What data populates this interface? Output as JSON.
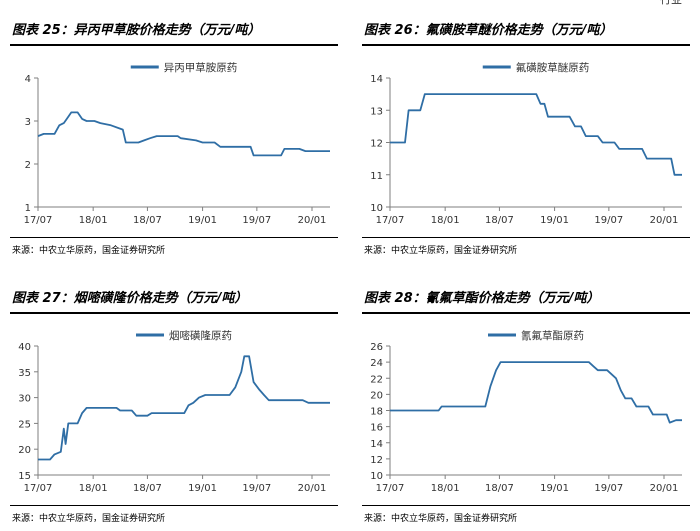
{
  "header": {
    "top_right_fragment": "行业"
  },
  "colors": {
    "series": "#2f6ea5",
    "axis": "#7f7f7f"
  },
  "chart_data": [
    {
      "type": "line",
      "title": "图表 25：异丙甲草胺价格走势（万元/吨）",
      "source": "来源：中农立华原药，国金证券研究所",
      "legend": {
        "position": "top-center"
      },
      "xlabel": "",
      "ylabel": "",
      "ylim": [
        1,
        4
      ],
      "yticks": [
        1,
        2,
        3,
        4
      ],
      "xlim": [
        "2017-07-01",
        "2020-03-01"
      ],
      "xticks": [
        "17/07",
        "18/01",
        "18/07",
        "19/01",
        "19/07",
        "20/01"
      ],
      "series": [
        {
          "name": "异丙甲草胺原药",
          "points": [
            [
              "2017-07-01",
              2.65
            ],
            [
              "2017-07-20",
              2.7
            ],
            [
              "2017-08-25",
              2.7
            ],
            [
              "2017-09-10",
              2.9
            ],
            [
              "2017-09-25",
              2.95
            ],
            [
              "2017-10-05",
              3.05
            ],
            [
              "2017-10-20",
              3.2
            ],
            [
              "2017-11-10",
              3.2
            ],
            [
              "2017-11-25",
              3.05
            ],
            [
              "2017-12-10",
              3.0
            ],
            [
              "2018-01-05",
              3.0
            ],
            [
              "2018-01-25",
              2.95
            ],
            [
              "2018-03-01",
              2.9
            ],
            [
              "2018-04-10",
              2.8
            ],
            [
              "2018-04-20",
              2.5
            ],
            [
              "2018-06-01",
              2.5
            ],
            [
              "2018-06-20",
              2.55
            ],
            [
              "2018-07-10",
              2.6
            ],
            [
              "2018-08-01",
              2.65
            ],
            [
              "2018-10-10",
              2.65
            ],
            [
              "2018-10-20",
              2.6
            ],
            [
              "2018-12-10",
              2.55
            ],
            [
              "2019-01-01",
              2.5
            ],
            [
              "2019-02-10",
              2.5
            ],
            [
              "2019-03-01",
              2.4
            ],
            [
              "2019-06-10",
              2.4
            ],
            [
              "2019-06-20",
              2.2
            ],
            [
              "2019-09-20",
              2.2
            ],
            [
              "2019-10-01",
              2.35
            ],
            [
              "2019-11-20",
              2.35
            ],
            [
              "2019-12-10",
              2.3
            ],
            [
              "2020-03-01",
              2.3
            ]
          ]
        }
      ]
    },
    {
      "type": "line",
      "title": "图表 26：氟磺胺草醚价格走势（万元/吨）",
      "source": "来源：中农立华原药，国金证券研究所",
      "legend": {
        "position": "top-center"
      },
      "xlabel": "",
      "ylabel": "",
      "ylim": [
        10,
        14
      ],
      "yticks": [
        10,
        11,
        12,
        13,
        14
      ],
      "xlim": [
        "2017-07-01",
        "2020-03-01"
      ],
      "xticks": [
        "17/07",
        "18/01",
        "18/07",
        "19/01",
        "19/07",
        "20/01"
      ],
      "series": [
        {
          "name": "氟磺胺草醚原药",
          "points": [
            [
              "2017-07-01",
              12.0
            ],
            [
              "2017-08-20",
              12.0
            ],
            [
              "2017-09-01",
              13.0
            ],
            [
              "2017-10-10",
              13.0
            ],
            [
              "2017-10-25",
              13.5
            ],
            [
              "2018-11-01",
              13.5
            ],
            [
              "2018-11-15",
              13.2
            ],
            [
              "2018-11-28",
              13.2
            ],
            [
              "2018-12-10",
              12.8
            ],
            [
              "2019-02-20",
              12.8
            ],
            [
              "2019-03-10",
              12.5
            ],
            [
              "2019-03-30",
              12.5
            ],
            [
              "2019-04-15",
              12.2
            ],
            [
              "2019-05-25",
              12.2
            ],
            [
              "2019-06-10",
              12.0
            ],
            [
              "2019-07-20",
              12.0
            ],
            [
              "2019-08-05",
              11.8
            ],
            [
              "2019-10-20",
              11.8
            ],
            [
              "2019-11-05",
              11.5
            ],
            [
              "2020-01-25",
              11.5
            ],
            [
              "2020-02-05",
              11.0
            ],
            [
              "2020-03-01",
              11.0
            ]
          ]
        }
      ]
    },
    {
      "type": "line",
      "title": "图表 27：烟嘧磺隆价格走势（万元/吨）",
      "source": "来源：中农立华原药，国金证券研究所",
      "legend": {
        "position": "top-center"
      },
      "xlabel": "",
      "ylabel": "",
      "ylim": [
        15,
        40
      ],
      "yticks": [
        15,
        20,
        25,
        30,
        35,
        40
      ],
      "xlim": [
        "2017-07-01",
        "2020-03-01"
      ],
      "xticks": [
        "17/07",
        "18/01",
        "18/07",
        "19/01",
        "19/07",
        "20/01"
      ],
      "series": [
        {
          "name": "烟嘧磺隆原药",
          "points": [
            [
              "2017-07-01",
              18.0
            ],
            [
              "2017-08-10",
              18.0
            ],
            [
              "2017-08-25",
              19.0
            ],
            [
              "2017-09-15",
              19.5
            ],
            [
              "2017-09-25",
              24.0
            ],
            [
              "2017-10-01",
              21.0
            ],
            [
              "2017-10-10",
              25.0
            ],
            [
              "2017-11-10",
              25.0
            ],
            [
              "2017-11-25",
              27.0
            ],
            [
              "2017-12-10",
              28.0
            ],
            [
              "2018-03-20",
              28.0
            ],
            [
              "2018-04-01",
              27.5
            ],
            [
              "2018-05-10",
              27.5
            ],
            [
              "2018-05-25",
              26.5
            ],
            [
              "2018-07-01",
              26.5
            ],
            [
              "2018-07-15",
              27.0
            ],
            [
              "2018-11-01",
              27.0
            ],
            [
              "2018-11-15",
              28.5
            ],
            [
              "2018-12-01",
              29.0
            ],
            [
              "2018-12-20",
              30.0
            ],
            [
              "2019-01-10",
              30.5
            ],
            [
              "2019-04-01",
              30.5
            ],
            [
              "2019-04-20",
              32.0
            ],
            [
              "2019-05-10",
              35.0
            ],
            [
              "2019-05-20",
              38.0
            ],
            [
              "2019-06-05",
              38.0
            ],
            [
              "2019-06-20",
              33.0
            ],
            [
              "2019-07-10",
              31.5
            ],
            [
              "2019-07-25",
              30.5
            ],
            [
              "2019-08-10",
              29.5
            ],
            [
              "2019-12-01",
              29.5
            ],
            [
              "2019-12-20",
              29.0
            ],
            [
              "2020-03-01",
              29.0
            ]
          ]
        }
      ]
    },
    {
      "type": "line",
      "title": "图表 28：氰氟草酯价格走势（万元/吨）",
      "source": "来源：中农立华原药，国金证券研究所",
      "legend": {
        "position": "top-center"
      },
      "xlabel": "",
      "ylabel": "",
      "ylim": [
        10,
        26
      ],
      "yticks": [
        10,
        12,
        14,
        16,
        18,
        20,
        22,
        24,
        26
      ],
      "xlim": [
        "2017-07-01",
        "2020-03-01"
      ],
      "xticks": [
        "17/07",
        "18/01",
        "18/07",
        "19/01",
        "19/07",
        "20/01"
      ],
      "series": [
        {
          "name": "氰氟草酯原药",
          "points": [
            [
              "2017-07-01",
              18.0
            ],
            [
              "2017-12-10",
              18.0
            ],
            [
              "2017-12-20",
              18.5
            ],
            [
              "2018-05-15",
              18.5
            ],
            [
              "2018-06-01",
              21.0
            ],
            [
              "2018-06-20",
              23.0
            ],
            [
              "2018-07-05",
              24.0
            ],
            [
              "2019-04-25",
              24.0
            ],
            [
              "2019-05-10",
              23.5
            ],
            [
              "2019-05-25",
              23.0
            ],
            [
              "2019-06-25",
              23.0
            ],
            [
              "2019-07-10",
              22.5
            ],
            [
              "2019-07-25",
              22.0
            ],
            [
              "2019-08-10",
              20.5
            ],
            [
              "2019-08-25",
              19.5
            ],
            [
              "2019-09-15",
              19.5
            ],
            [
              "2019-10-01",
              18.5
            ],
            [
              "2019-11-10",
              18.5
            ],
            [
              "2019-11-25",
              17.5
            ],
            [
              "2020-01-10",
              17.5
            ],
            [
              "2020-01-20",
              16.5
            ],
            [
              "2020-02-10",
              16.8
            ],
            [
              "2020-03-01",
              16.8
            ]
          ]
        }
      ]
    }
  ]
}
